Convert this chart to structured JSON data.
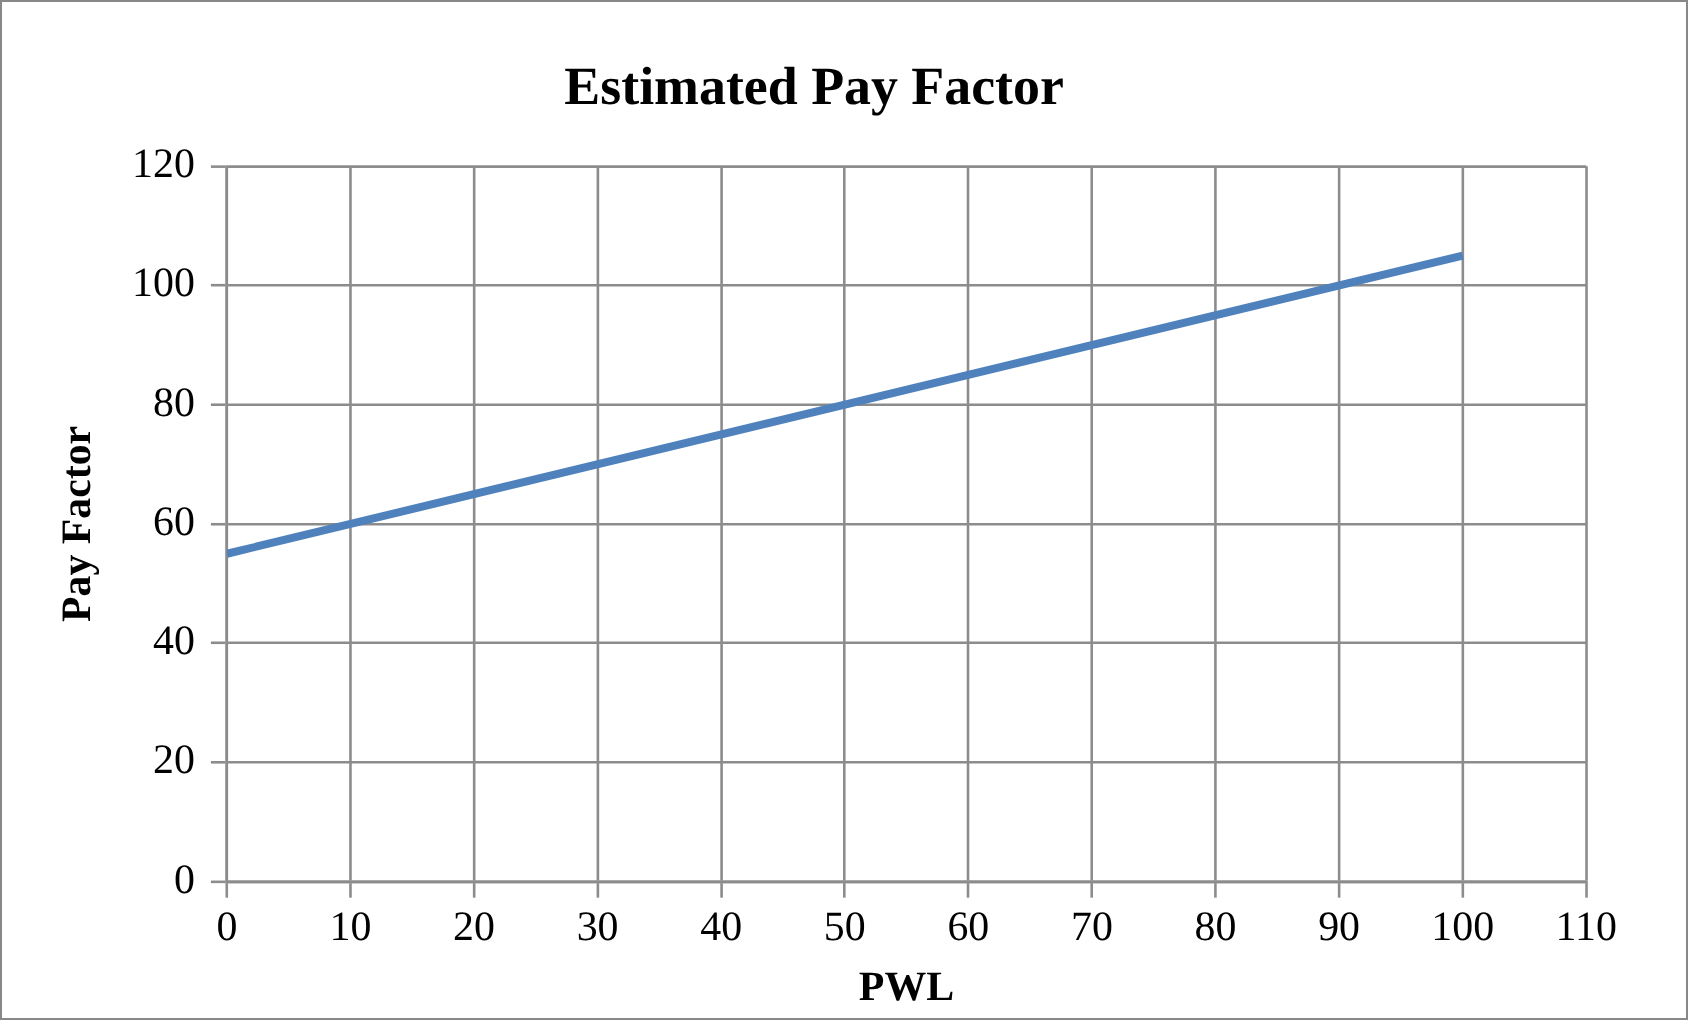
{
  "chart_data": {
    "type": "line",
    "title": "Estimated Pay Factor",
    "xlabel": "PWL",
    "ylabel": "Pay Factor",
    "x": [
      0,
      100
    ],
    "series": [
      {
        "color": "#4f81bd",
        "values": [
          55,
          105
        ]
      }
    ],
    "xlim": [
      0,
      110
    ],
    "xticks": [
      0,
      10,
      20,
      30,
      40,
      50,
      60,
      70,
      80,
      90,
      100,
      110
    ],
    "ylim": [
      0,
      120
    ],
    "yticks": [
      0,
      20,
      40,
      60,
      80,
      100,
      120
    ],
    "grid": true,
    "legend": false,
    "marker": "none",
    "line_style": "solid"
  }
}
